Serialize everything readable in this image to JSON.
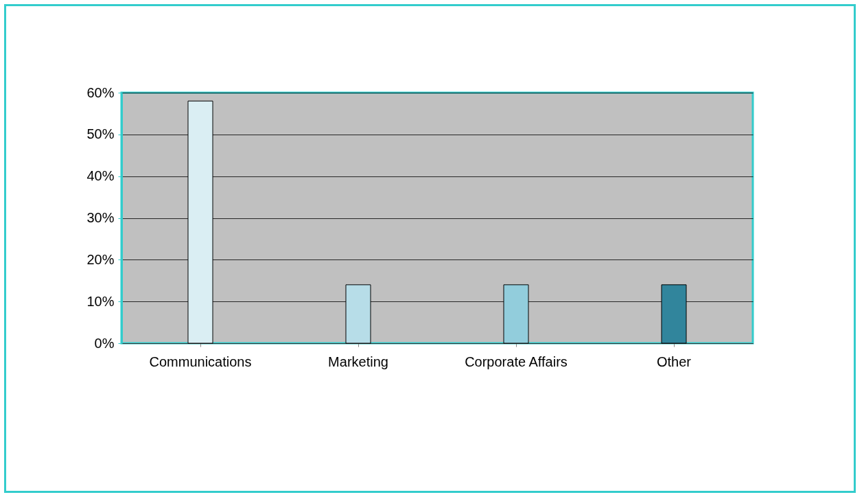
{
  "chart_data": {
    "type": "bar",
    "categories": [
      "Communications",
      "Marketing",
      "Corporate Affairs",
      "Other"
    ],
    "values": [
      58,
      14,
      14,
      14
    ],
    "colors": [
      "#daeef3",
      "#b7dde8",
      "#92cddc",
      "#31859c"
    ],
    "ylim": [
      0,
      60
    ],
    "yticks": [
      {
        "value": 0,
        "label": "0%"
      },
      {
        "value": 10,
        "label": "10%"
      },
      {
        "value": 20,
        "label": "20%"
      },
      {
        "value": 30,
        "label": "30%"
      },
      {
        "value": 40,
        "label": "40%"
      },
      {
        "value": 50,
        "label": "50%"
      },
      {
        "value": 60,
        "label": "60%"
      }
    ],
    "grid": "y"
  }
}
